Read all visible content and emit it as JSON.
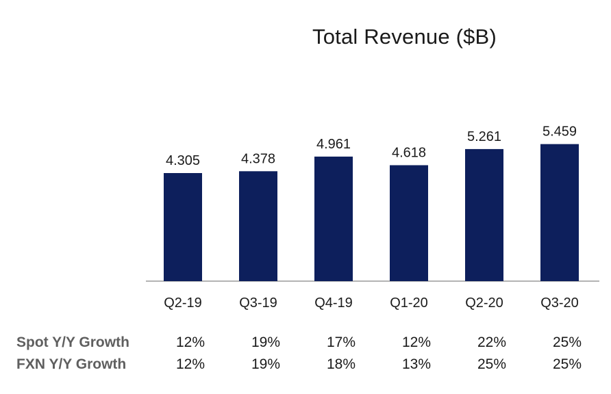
{
  "chart_data": {
    "type": "bar",
    "title": "Total Revenue ($B)",
    "categories": [
      "Q2-19",
      "Q3-19",
      "Q4-19",
      "Q1-20",
      "Q2-20",
      "Q3-20"
    ],
    "values": [
      4.305,
      4.378,
      4.961,
      4.618,
      5.261,
      5.459
    ],
    "value_labels": [
      "4.305",
      "4.378",
      "4.961",
      "4.618",
      "5.261",
      "5.459"
    ],
    "bar_color": "#0d1f5c",
    "axis_color": "#9a9a9a",
    "grid": false,
    "legend": "none"
  },
  "growth_table": {
    "rows": [
      {
        "label": "Spot Y/Y Growth",
        "values": [
          "12%",
          "19%",
          "17%",
          "12%",
          "22%",
          "25%"
        ]
      },
      {
        "label": "FXN Y/Y Growth",
        "values": [
          "12%",
          "19%",
          "18%",
          "13%",
          "25%",
          "25%"
        ]
      }
    ]
  }
}
